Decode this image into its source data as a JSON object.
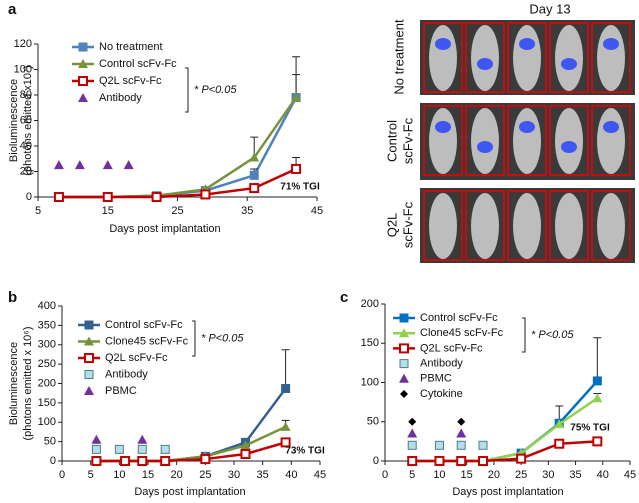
{
  "panel_labels": [
    "a",
    "b",
    "c"
  ],
  "photo_panel": {
    "title": "Day 13",
    "rows": [
      [
        "No treatment"
      ],
      [
        "Control",
        "scFv-Fc"
      ],
      [
        "Q2L",
        "scFv-Fc"
      ]
    ]
  },
  "chart_data": [
    {
      "type": "line",
      "xlabel": "Days post implantation",
      "ylabel": [
        "Bioluminescence",
        "(photons emitted x10⁷)"
      ],
      "xlim": [
        5,
        45
      ],
      "xticks": [
        5,
        15,
        25,
        35,
        45
      ],
      "ylim": [
        0,
        120
      ],
      "yticks": [
        0,
        20,
        40,
        60,
        80,
        100,
        120
      ],
      "x": [
        8,
        15,
        22,
        29,
        36,
        42
      ],
      "series": [
        {
          "name": "No treatment",
          "color": "#4f81bd",
          "marker": "square",
          "values": [
            0,
            0,
            1,
            5,
            17,
            78
          ],
          "errors": [
            null,
            null,
            null,
            null,
            5,
            18
          ]
        },
        {
          "name": "Control scFv-Fc",
          "color": "#77933c",
          "marker": "triangle",
          "values": [
            0,
            0,
            1,
            6,
            31,
            78
          ],
          "errors": [
            null,
            null,
            null,
            null,
            16,
            32
          ]
        },
        {
          "name": "Q2L scFv-Fc",
          "color": "#c00000",
          "marker": "open-square",
          "values": [
            0,
            0,
            0,
            2,
            7,
            22
          ],
          "errors": [
            null,
            null,
            null,
            null,
            null,
            9
          ]
        }
      ],
      "markers": [
        {
          "name": "Antibody",
          "color": "#7030a0",
          "marker": "triangle",
          "x": [
            8,
            11,
            15,
            18
          ],
          "y": [
            25,
            25,
            25,
            25
          ]
        }
      ],
      "significance": "* P<0.05",
      "tgi": "71% TGI"
    },
    {
      "type": "line",
      "xlabel": "Days post implantation",
      "ylabel": [
        "Bioluminescence",
        "(photons emitted x 10⁶)"
      ],
      "xlim": [
        0,
        45
      ],
      "xticks": [
        0,
        5,
        10,
        15,
        20,
        25,
        30,
        35,
        40,
        45
      ],
      "ylim": [
        0,
        400
      ],
      "yticks": [
        0,
        50,
        100,
        150,
        200,
        250,
        300,
        350,
        400
      ],
      "x": [
        6,
        11,
        14,
        18,
        25,
        32,
        39
      ],
      "series": [
        {
          "name": "Control scFv-Fc",
          "color": "#366092",
          "marker": "square",
          "values": [
            0,
            0,
            0,
            0,
            12,
            48,
            187
          ],
          "errors": [
            null,
            null,
            null,
            null,
            null,
            10,
            100
          ]
        },
        {
          "name": "Clone45 scFv-Fc",
          "color": "#77933c",
          "marker": "triangle",
          "values": [
            0,
            0,
            0,
            0,
            12,
            40,
            88
          ],
          "errors": [
            null,
            null,
            null,
            null,
            null,
            null,
            17
          ]
        },
        {
          "name": "Q2L scFv-Fc",
          "color": "#c00000",
          "marker": "open-square",
          "values": [
            0,
            0,
            0,
            0,
            5,
            18,
            48
          ],
          "errors": [
            null,
            null,
            null,
            null,
            null,
            null,
            null
          ]
        }
      ],
      "markers": [
        {
          "name": "Antibody",
          "color": "#b7dee8",
          "marker": "square",
          "x": [
            6,
            10,
            14,
            18
          ],
          "y": [
            30,
            30,
            30,
            30
          ]
        },
        {
          "name": "PBMC",
          "color": "#7030a0",
          "marker": "triangle",
          "x": [
            6,
            14
          ],
          "y": [
            55,
            55
          ]
        }
      ],
      "significance": "* P<0.05",
      "tgi": "73% TGI"
    },
    {
      "type": "line",
      "xlabel": "Days post implantation",
      "xlim": [
        0,
        45
      ],
      "xticks": [
        0,
        5,
        10,
        15,
        20,
        25,
        30,
        35,
        40,
        45
      ],
      "ylim": [
        0,
        200
      ],
      "yticks": [
        0,
        50,
        100,
        150,
        200
      ],
      "x": [
        5,
        10,
        14,
        18,
        25,
        32,
        39
      ],
      "series": [
        {
          "name": "Control scFv-Fc",
          "color": "#0070c0",
          "marker": "square",
          "values": [
            0,
            0,
            0,
            0,
            10,
            48,
            102
          ],
          "errors": [
            null,
            null,
            null,
            null,
            null,
            22,
            55
          ]
        },
        {
          "name": "Clone45 scFv-Fc",
          "color": "#92d050",
          "marker": "triangle",
          "values": [
            0,
            0,
            0,
            0,
            10,
            47,
            80
          ],
          "errors": [
            null,
            null,
            null,
            null,
            null,
            null,
            6
          ]
        },
        {
          "name": "Q2L scFv-Fc",
          "color": "#c00000",
          "marker": "open-square",
          "values": [
            0,
            0,
            0,
            0,
            3,
            22,
            25
          ],
          "errors": [
            null,
            null,
            null,
            null,
            null,
            null,
            null
          ]
        }
      ],
      "markers": [
        {
          "name": "Antibody",
          "color": "#b7dee8",
          "marker": "square",
          "x": [
            5,
            10,
            14,
            18
          ],
          "y": [
            20,
            20,
            20,
            20
          ]
        },
        {
          "name": "PBMC",
          "color": "#7030a0",
          "marker": "triangle",
          "x": [
            5,
            14
          ],
          "y": [
            35,
            35
          ]
        },
        {
          "name": "Cytokine",
          "color": "#000000",
          "marker": "diamond",
          "x": [
            5,
            14
          ],
          "y": [
            50,
            50
          ]
        }
      ],
      "significance": "* P<0.05",
      "tgi": "75% TGI"
    }
  ]
}
